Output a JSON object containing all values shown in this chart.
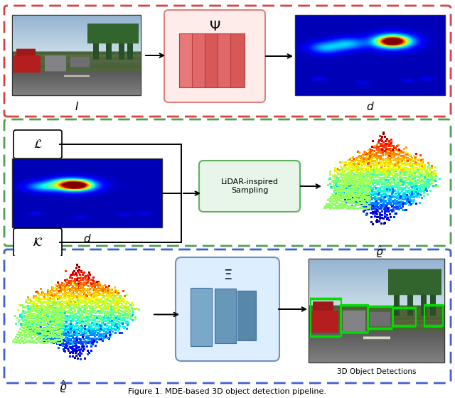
{
  "fig_width": 6.4,
  "fig_height": 5.6,
  "bg_color": "#ffffff",
  "panel1_color": "#d94040",
  "panel2_color": "#50a050",
  "panel3_color": "#4060d0",
  "caption": "Figure 1. MDE-based 3D object detection pipeline."
}
